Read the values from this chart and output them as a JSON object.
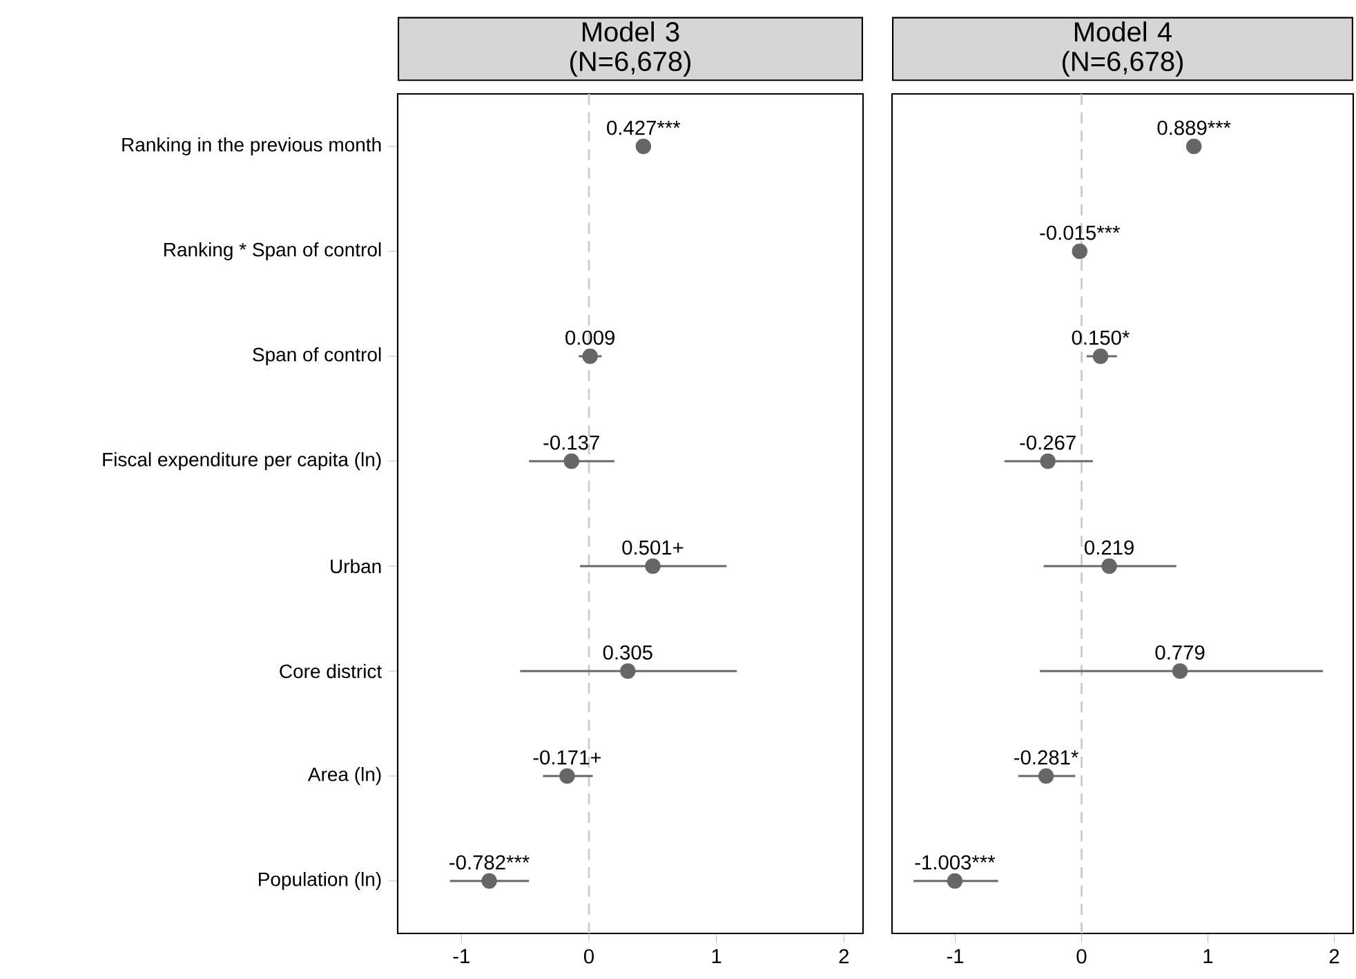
{
  "chart_data": [
    {
      "type": "scatter",
      "orientation": "horizontal",
      "title": "Model 3",
      "subtitle": "(N=6,678)",
      "categories": [
        "Ranking in the previous month",
        "Ranking * Span of control",
        "Span of control",
        "Fiscal expenditure per capita (ln)",
        "Urban",
        "Core district",
        "Area (ln)",
        "Population (ln)"
      ],
      "values": [
        0.427,
        null,
        0.009,
        -0.137,
        0.501,
        0.305,
        -0.171,
        -0.782
      ],
      "errors": [
        null,
        null,
        [
          -0.08,
          0.1
        ],
        [
          -0.47,
          0.2
        ],
        [
          -0.07,
          1.08
        ],
        [
          -0.54,
          1.16
        ],
        [
          -0.36,
          0.03
        ],
        [
          -1.09,
          -0.47
        ]
      ],
      "value_labels": [
        "0.427***",
        null,
        "0.009",
        "-0.137",
        "0.501+",
        "0.305",
        "-0.171+",
        "-0.782***"
      ],
      "color": "#666666",
      "marker": "circle",
      "xlim": [
        -1.5,
        2.15
      ],
      "xticks": [
        -1,
        0,
        1,
        2
      ],
      "ref_lines": [
        {
          "axis": "x",
          "value": 0,
          "color": "#c8c8c8",
          "line_style": "dashed"
        }
      ]
    },
    {
      "type": "scatter",
      "orientation": "horizontal",
      "title": "Model 4",
      "subtitle": "(N=6,678)",
      "values": [
        0.889,
        -0.015,
        0.15,
        -0.267,
        0.219,
        0.779,
        -0.281,
        -1.003
      ],
      "categories": [
        null,
        null,
        null,
        null,
        null,
        null,
        null,
        null
      ],
      "errors": [
        null,
        null,
        [
          0.04,
          0.28
        ],
        [
          -0.61,
          0.09
        ],
        [
          -0.3,
          0.75
        ],
        [
          -0.33,
          1.91
        ],
        [
          -0.5,
          -0.05
        ],
        [
          -1.33,
          -0.66
        ]
      ],
      "value_labels": [
        "0.889***",
        "-0.015***",
        "0.150*",
        "-0.267",
        "0.219",
        "0.779",
        "-0.281*",
        "-1.003***"
      ],
      "color": "#666666",
      "marker": "circle",
      "xlim": [
        -1.5,
        2.15
      ],
      "xticks": [
        -1,
        0,
        1,
        2
      ],
      "tick_labels": "x",
      "ref_lines": [
        {
          "axis": "x",
          "value": 0,
          "color": "#c8c8c8",
          "line_style": "dashed"
        }
      ]
    }
  ]
}
